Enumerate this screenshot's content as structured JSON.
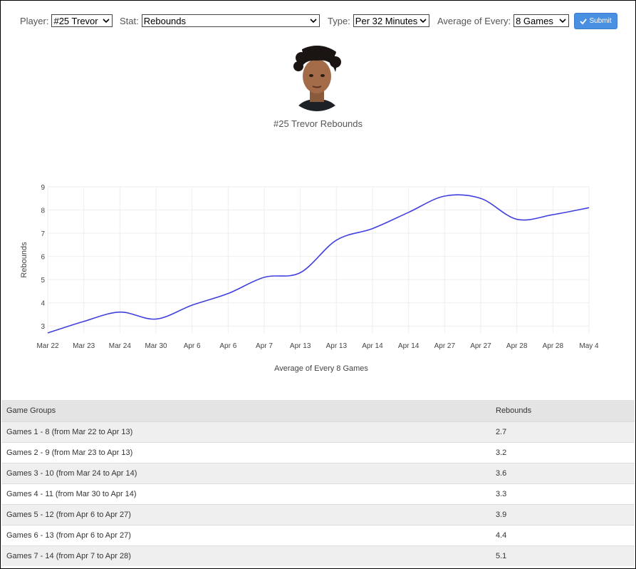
{
  "controls": {
    "player_label": "Player:",
    "player_value": "#25 Trevor",
    "stat_label": "Stat:",
    "stat_value": "Rebounds",
    "type_label": "Type:",
    "type_value": "Per 32 Minutes",
    "avg_label": "Average of Every:",
    "avg_value": "8 Games",
    "submit_label": "Submit"
  },
  "player_title": "#25 Trevor Rebounds",
  "chart_data": {
    "type": "line",
    "x": [
      "Mar 22",
      "Mar 23",
      "Mar 24",
      "Mar 30",
      "Apr 6",
      "Apr 6",
      "Apr 7",
      "Apr 13",
      "Apr 13",
      "Apr 14",
      "Apr 14",
      "Apr 27",
      "Apr 27",
      "Apr 28",
      "Apr 28",
      "May 4"
    ],
    "values": [
      2.7,
      3.2,
      3.6,
      3.3,
      3.9,
      4.4,
      5.1,
      5.3,
      6.7,
      7.2,
      7.9,
      8.6,
      8.5,
      7.6,
      7.8,
      8.1
    ],
    "xlabel": "Average of Every 8 Games",
    "ylabel": "Rebounds",
    "ylim": [
      2.7,
      9
    ],
    "yticks": [
      "3",
      "4",
      "5",
      "6",
      "7",
      "8",
      "9"
    ],
    "grid": true,
    "color": "#4040e0"
  },
  "table": {
    "headers": [
      "Game Groups",
      "Rebounds"
    ],
    "rows": [
      [
        "Games 1 - 8 (from Mar 22 to Apr 13)",
        "2.7"
      ],
      [
        "Games 2 - 9 (from Mar 23 to Apr 13)",
        "3.2"
      ],
      [
        "Games 3 - 10 (from Mar 24 to Apr 14)",
        "3.6"
      ],
      [
        "Games 4 - 11 (from Mar 30 to Apr 14)",
        "3.3"
      ],
      [
        "Games 5 - 12 (from Apr 6 to Apr 27)",
        "3.9"
      ],
      [
        "Games 6 - 13 (from Apr 6 to Apr 27)",
        "4.4"
      ],
      [
        "Games 7 - 14 (from Apr 7 to Apr 28)",
        "5.1"
      ]
    ]
  }
}
